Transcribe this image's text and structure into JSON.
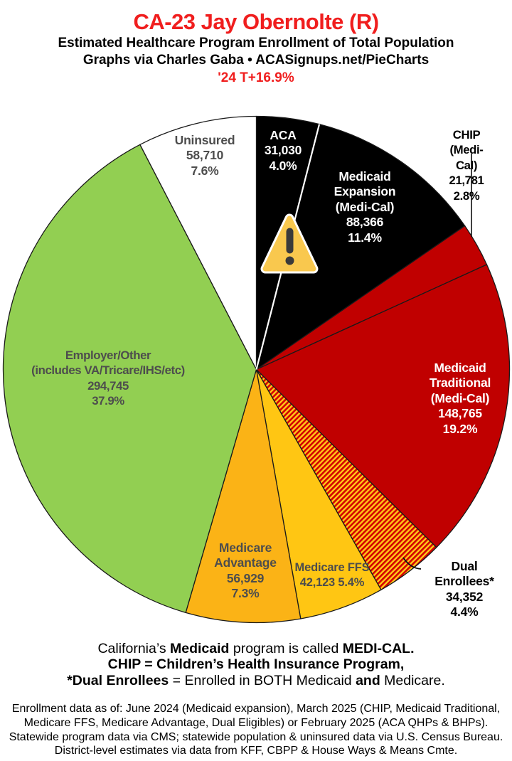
{
  "header": {
    "title": "CA-23 Jay Obernolte (R)",
    "subtitle": "Estimated Healthcare Program Enrollment of Total Population",
    "credit": "Graphs via Charles Gaba   •   ACASignups.net/PieCharts",
    "delta": "'24 T+16.9%"
  },
  "colors": {
    "accent_red": "#F01E1E",
    "slice_border": "#1a1a1a",
    "muted_label": "#4D4D4D"
  },
  "chart_data": {
    "type": "pie",
    "title": "Estimated Healthcare Program Enrollment of Total Population",
    "start_angle_deg": 0,
    "direction": "clockwise",
    "legend": "labels-on-slices",
    "hatch": {
      "bg": "#FFC919",
      "stripe": "#D40000"
    },
    "style_hints": {
      "white_divider_after_slice_index": 0
    },
    "slices": [
      {
        "id": "aca",
        "name": "ACA",
        "value": 31030,
        "value_text": "31,030",
        "pct": 4.0,
        "color": "#000000",
        "fill": "solid",
        "label": "ACA\n31,030\n4.0%",
        "label_color": "#FFFFFF"
      },
      {
        "id": "medicaid-expansion",
        "name": "Medicaid Expansion (Medi-Cal)",
        "value": 88366,
        "value_text": "88,366",
        "pct": 11.4,
        "color": "#000000",
        "fill": "solid",
        "label": "Medicaid\nExpansion\n(Medi-Cal)\n88,366\n11.4%",
        "label_color": "#FFFFFF"
      },
      {
        "id": "chip",
        "name": "CHIP (Medi-Cal)",
        "value": 21781,
        "value_text": "21,781",
        "pct": 2.8,
        "color": "#C00000",
        "fill": "solid",
        "label": "CHIP (Medi-Cal)\n21,781 2.8%",
        "label_color": "#000000",
        "label_outside": true
      },
      {
        "id": "medicaid-traditional",
        "name": "Medicaid Traditional (Medi-Cal)",
        "value": 148765,
        "value_text": "148,765",
        "pct": 19.2,
        "color": "#C00000",
        "fill": "solid",
        "label": "Medicaid\nTraditional\n(Medi-Cal)\n148,765\n19.2%",
        "label_color": "#FFFFFF"
      },
      {
        "id": "dual-enrollees",
        "name": "Dual Enrollees*",
        "value": 34352,
        "value_text": "34,352",
        "pct": 4.4,
        "color": "#D40000",
        "fill": "hatch",
        "label": "Dual Enrollees*\n34,352 4.4%",
        "label_color": "#000000",
        "label_outside": true
      },
      {
        "id": "medicare-ffs",
        "name": "Medicare FFS",
        "value": 42123,
        "value_text": "42,123",
        "pct": 5.4,
        "color": "#FFC613",
        "fill": "solid",
        "label": "Medicare FFS\n42,123 5.4%",
        "label_color": "#4D4D4D"
      },
      {
        "id": "medicare-advantage",
        "name": "Medicare Advantage",
        "value": 56929,
        "value_text": "56,929",
        "pct": 7.3,
        "color": "#FBB316",
        "fill": "solid",
        "label": "Medicare\nAdvantage\n56,929\n7.3%",
        "label_color": "#4D4D4D"
      },
      {
        "id": "employer-other",
        "name": "Employer/Other (includes VA/Tricare/IHS/etc)",
        "value": 294745,
        "value_text": "294,745",
        "pct": 37.9,
        "color": "#92CF52",
        "fill": "solid",
        "label": "Employer/Other\n(includes VA/Tricare/IHS/etc)\n294,745\n37.9%",
        "label_color": "#4D4D4D"
      },
      {
        "id": "uninsured",
        "name": "Uninsured",
        "value": 58710,
        "value_text": "58,710",
        "pct": 7.6,
        "color": "#FFFFFF",
        "fill": "solid",
        "label": "Uninsured\n58,710\n7.6%",
        "label_color": "#4D4D4D"
      }
    ]
  },
  "warning_icon": {
    "name": "warning-triangle",
    "fill": "#F9C84E",
    "glyph_color": "#3A3A3A"
  },
  "notes": {
    "l1a": "California’s ",
    "l1b": "Medicaid",
    "l1c": " program is called ",
    "l1d": "MEDI-CAL.",
    "l2": "CHIP = Children’s Health Insurance Program,",
    "l3a": "*Dual Enrollees",
    "l3b": " = Enrolled in BOTH Medicaid ",
    "l3c": "and",
    "l3d": " Medicare."
  },
  "fineprint": "Enrollment data as of: June 2024 (Medicaid expansion), March 2025 (CHIP, Medicaid Traditional,\nMedicare FFS, Medicare Advantage, Dual Eligibles) or February 2025 (ACA QHPs & BHPs).\nStatewide program data via CMS; statewide population & uninsured data via U.S. Census Bureau.\nDistrict-level estimates via data from KFF, CBPP & House Ways & Means Cmte."
}
